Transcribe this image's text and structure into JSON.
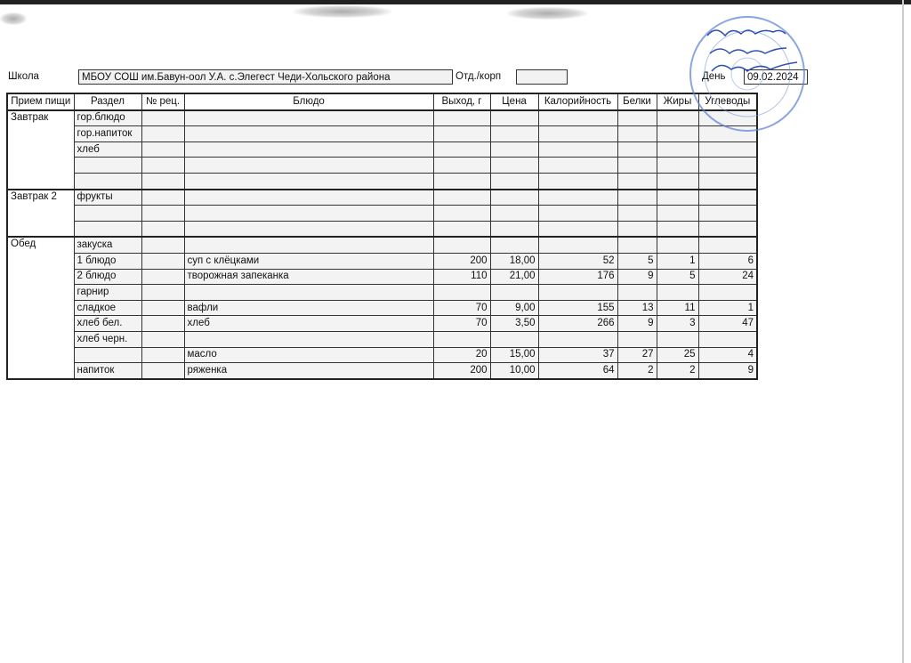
{
  "header": {
    "school_label": "Школа",
    "school_value": "МБОУ СОШ им.Бавун-оол У.А. с.Элегест Чеди-Хольского района",
    "dept_label": "Отд./корп",
    "dept_value": "",
    "day_label": "День",
    "day_value": "09.02.2024"
  },
  "table": {
    "columns": [
      "Прием пищи",
      "Раздел",
      "№ рец.",
      "Блюдо",
      "Выход, г",
      "Цена",
      "Калорийность",
      "Белки",
      "Жиры",
      "Углеводы"
    ],
    "groups": [
      {
        "meal": "Завтрак",
        "rows": [
          [
            "гор.блюдо",
            "",
            "",
            "",
            "",
            "",
            "",
            "",
            ""
          ],
          [
            "гор.напиток",
            "",
            "",
            "",
            "",
            "",
            "",
            "",
            ""
          ],
          [
            "хлеб",
            "",
            "",
            "",
            "",
            "",
            "",
            "",
            ""
          ],
          [
            "",
            "",
            "",
            "",
            "",
            "",
            "",
            "",
            ""
          ],
          [
            "",
            "",
            "",
            "",
            "",
            "",
            "",
            "",
            ""
          ]
        ]
      },
      {
        "meal": "Завтрак 2",
        "rows": [
          [
            "фрукты",
            "",
            "",
            "",
            "",
            "",
            "",
            "",
            ""
          ],
          [
            "",
            "",
            "",
            "",
            "",
            "",
            "",
            "",
            ""
          ],
          [
            "",
            "",
            "",
            "",
            "",
            "",
            "",
            "",
            ""
          ]
        ]
      },
      {
        "meal": "Обед",
        "rows": [
          [
            "закуска",
            "",
            "",
            "",
            "",
            "",
            "",
            "",
            ""
          ],
          [
            "1 блюдо",
            "",
            "суп с клёцками",
            "200",
            "18,00",
            "52",
            "5",
            "1",
            "6"
          ],
          [
            "2 блюдо",
            "",
            "творожная запеканка",
            "110",
            "21,00",
            "176",
            "9",
            "5",
            "24"
          ],
          [
            "гарнир",
            "",
            "",
            "",
            "",
            "",
            "",
            "",
            ""
          ],
          [
            "сладкое",
            "",
            "вафли",
            "70",
            "9,00",
            "155",
            "13",
            "11",
            "1"
          ],
          [
            "хлеб бел.",
            "",
            "хлеб",
            "70",
            "3,50",
            "266",
            "9",
            "3",
            "47"
          ],
          [
            "хлеб черн.",
            "",
            "",
            "",
            "",
            "",
            "",
            "",
            ""
          ],
          [
            "",
            "",
            "масло",
            "20",
            "15,00",
            "37",
            "27",
            "25",
            "4"
          ],
          [
            "напиток",
            "",
            "ряженка",
            "200",
            "10,00",
            "64",
            "2",
            "2",
            "9"
          ]
        ]
      }
    ]
  },
  "stamp": {
    "color": "#3a64c8"
  }
}
